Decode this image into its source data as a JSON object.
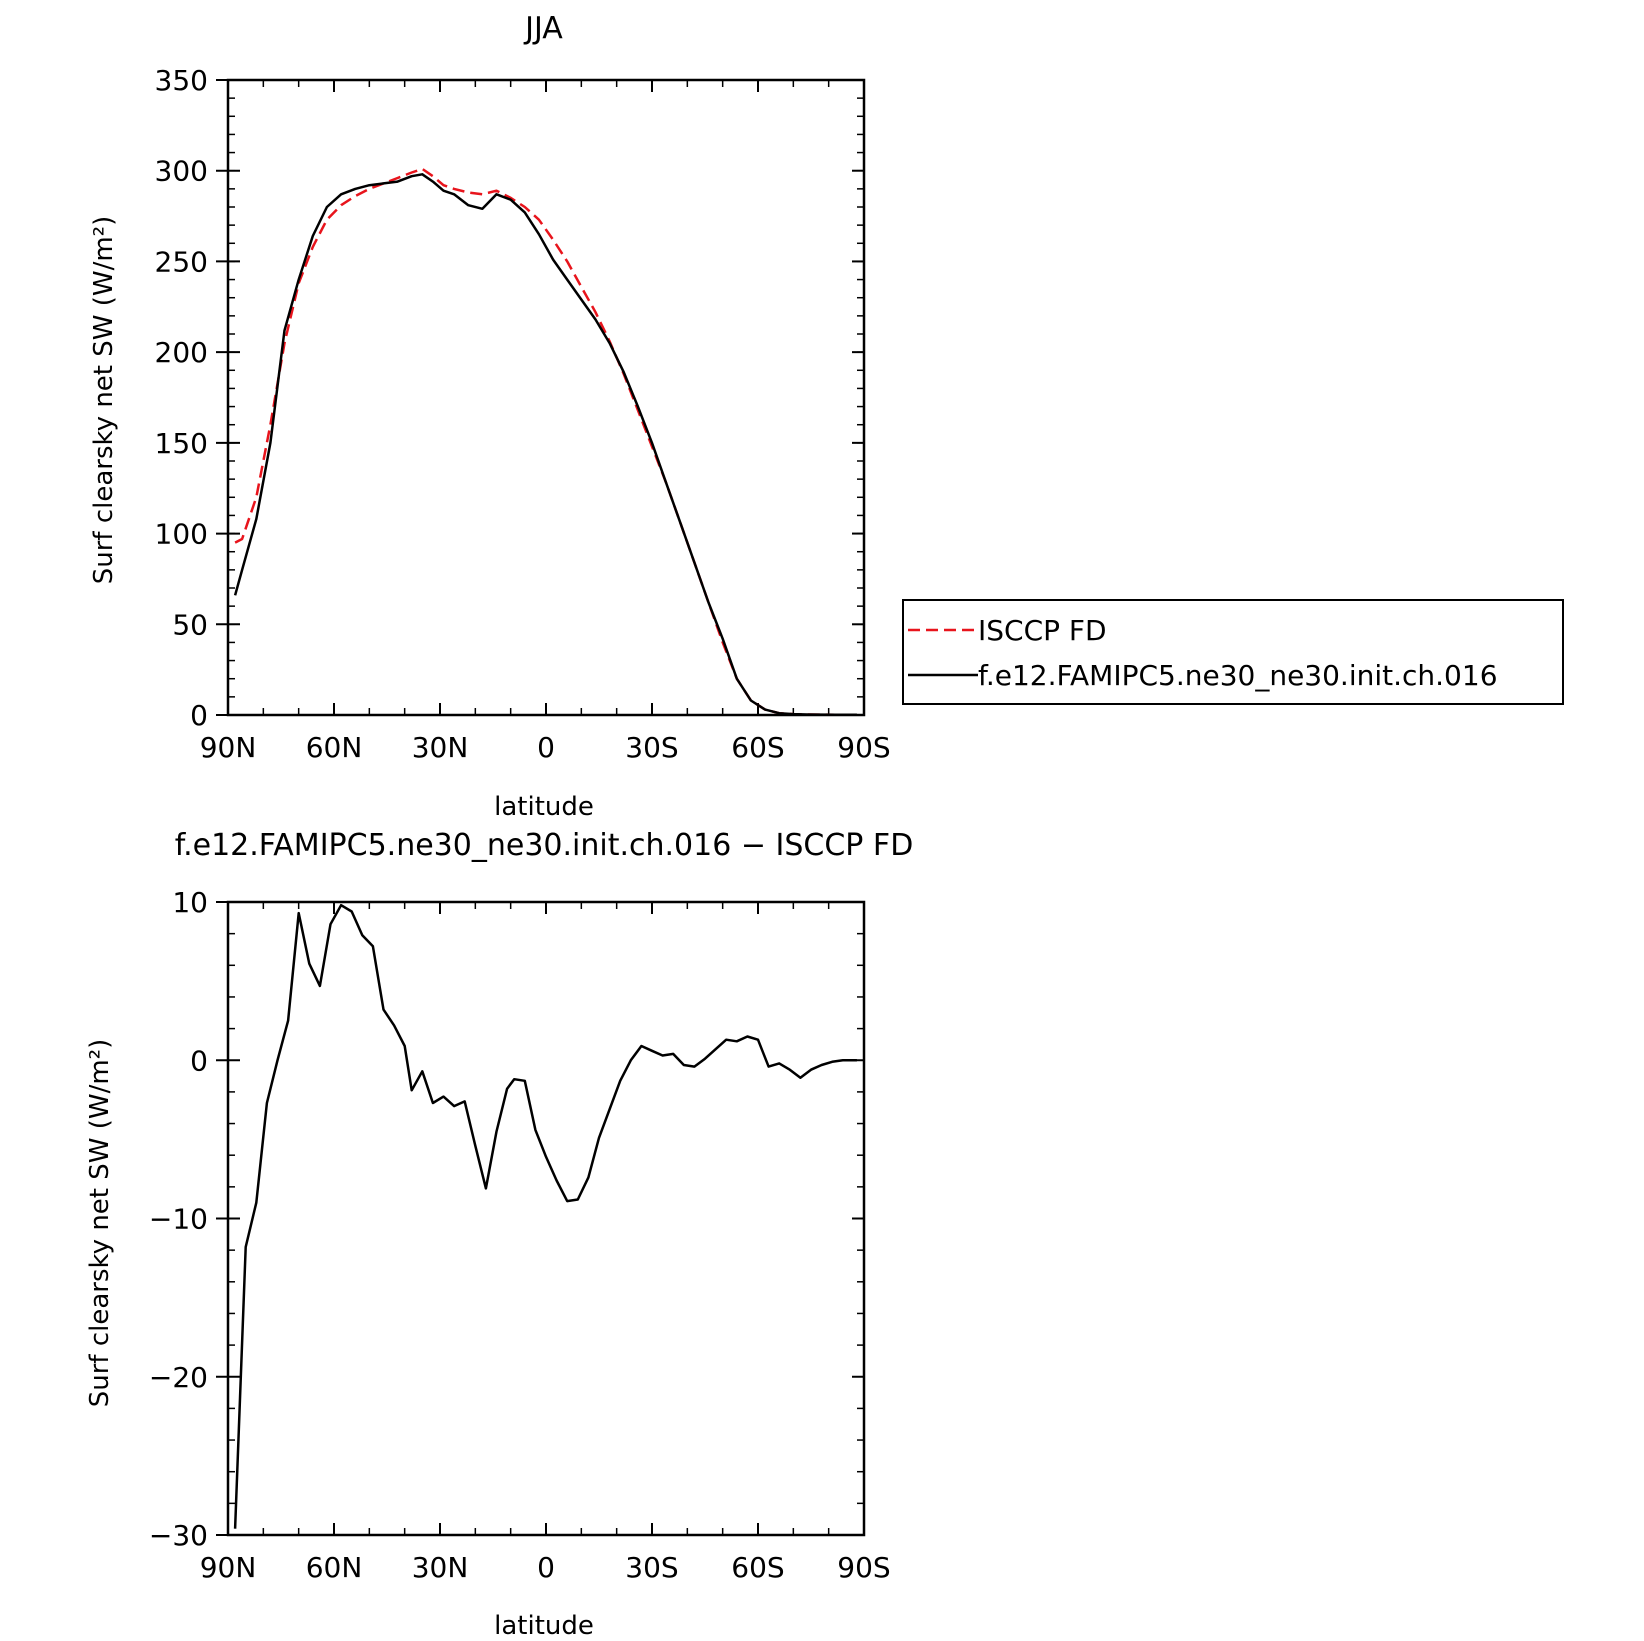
{
  "chart_data": [
    {
      "type": "line",
      "title": "JJA",
      "xlabel": "latitude",
      "ylabel": "Surf clearsky net SW (W/m²)",
      "xlim": [
        -90,
        90
      ],
      "ylim": [
        0,
        350
      ],
      "xticks": [
        {
          "value": -90,
          "label": "90N"
        },
        {
          "value": -60,
          "label": "60N"
        },
        {
          "value": -30,
          "label": "30N"
        },
        {
          "value": 0,
          "label": "0"
        },
        {
          "value": 30,
          "label": "30S"
        },
        {
          "value": 60,
          "label": "60S"
        },
        {
          "value": 90,
          "label": "90S"
        }
      ],
      "yticks": [
        0,
        50,
        100,
        150,
        200,
        250,
        300,
        350
      ],
      "legend_position": "right",
      "series": [
        {
          "name": "ISCCP FD",
          "color": "#e8141c",
          "dash": true,
          "x": [
            -88,
            -86,
            -82,
            -78,
            -74,
            -70,
            -66,
            -62,
            -58,
            -54,
            -50,
            -46,
            -42,
            -38,
            -35,
            -32,
            -29,
            -26,
            -22,
            -18,
            -14,
            -10,
            -6,
            -2,
            2,
            6,
            10,
            14,
            18,
            22,
            26,
            30,
            34,
            38,
            42,
            46,
            50,
            54,
            58,
            62,
            66,
            70,
            74,
            78,
            82,
            86,
            88
          ],
          "y": [
            95,
            97,
            120,
            160,
            205,
            238,
            258,
            273,
            281,
            286,
            290,
            293,
            296,
            299,
            301,
            297,
            292,
            290,
            288,
            287,
            289,
            285,
            280,
            273,
            262,
            250,
            236,
            222,
            206,
            188,
            168,
            148,
            128,
            106,
            84,
            62,
            40,
            20,
            8,
            3,
            1,
            0.5,
            0.3,
            0.2,
            0.1,
            0.1,
            0.1
          ]
        },
        {
          "name": "f.e12.FAMIPC5.ne30_ne30.init.ch.016",
          "color": "#000000",
          "dash": false,
          "x": [
            -88,
            -86,
            -82,
            -78,
            -74,
            -70,
            -66,
            -62,
            -58,
            -54,
            -50,
            -46,
            -42,
            -38,
            -35,
            -32,
            -29,
            -26,
            -22,
            -18,
            -14,
            -10,
            -6,
            -2,
            2,
            6,
            10,
            14,
            18,
            22,
            26,
            30,
            34,
            38,
            42,
            46,
            50,
            54,
            58,
            62,
            66,
            70,
            74,
            78,
            82,
            86,
            88
          ],
          "y": [
            66,
            80,
            108,
            150,
            212,
            240,
            264,
            280,
            287,
            290,
            292,
            293,
            294,
            297,
            298,
            294,
            289,
            287,
            281,
            279,
            287,
            284,
            277,
            265,
            251,
            240,
            229,
            218,
            205,
            189,
            170,
            150,
            128,
            106,
            84,
            62,
            42,
            20,
            8,
            3,
            1,
            0.5,
            0.3,
            0.2,
            0.1,
            0.1,
            0.1
          ]
        }
      ]
    },
    {
      "type": "line",
      "title": "f.e12.FAMIPC5.ne30_ne30.init.ch.016 − ISCCP FD",
      "xlabel": "latitude",
      "ylabel": "Surf clearsky net SW (W/m²)",
      "xlim": [
        -90,
        90
      ],
      "ylim": [
        -30,
        10
      ],
      "xticks": [
        {
          "value": -90,
          "label": "90N"
        },
        {
          "value": -60,
          "label": "60N"
        },
        {
          "value": -30,
          "label": "30N"
        },
        {
          "value": 0,
          "label": "0"
        },
        {
          "value": 30,
          "label": "30S"
        },
        {
          "value": 60,
          "label": "60S"
        },
        {
          "value": 90,
          "label": "90S"
        }
      ],
      "yticks": [
        -30,
        -20,
        -10,
        0,
        10
      ],
      "series": [
        {
          "name": "",
          "color": "#000000",
          "dash": false,
          "x": [
            -88,
            -85,
            -82,
            -79,
            -76,
            -73,
            -70,
            -67,
            -64,
            -61,
            -58,
            -55,
            -52,
            -49,
            -46,
            -43,
            -40,
            -38,
            -35,
            -32,
            -29,
            -26,
            -23,
            -20,
            -17,
            -14,
            -11,
            -9,
            -6,
            -3,
            0,
            3,
            6,
            9,
            12,
            15,
            18,
            21,
            24,
            27,
            30,
            33,
            36,
            39,
            42,
            45,
            48,
            51,
            54,
            57,
            60,
            63,
            66,
            69,
            72,
            75,
            78,
            81,
            84,
            88
          ],
          "y": [
            -29.6,
            -11.8,
            -9.0,
            -2.7,
            0,
            2.5,
            9.3,
            6.1,
            4.7,
            8.6,
            9.8,
            9.4,
            7.9,
            7.2,
            3.2,
            2.2,
            0.9,
            -1.9,
            -0.7,
            -2.7,
            -2.3,
            -2.9,
            -2.6,
            -5.4,
            -8.1,
            -4.5,
            -1.8,
            -1.2,
            -1.3,
            -4.4,
            -6.1,
            -7.6,
            -8.9,
            -8.8,
            -7.4,
            -4.9,
            -3.1,
            -1.3,
            0,
            0.9,
            0.6,
            0.3,
            0.4,
            -0.3,
            -0.4,
            0.1,
            0.7,
            1.3,
            1.2,
            1.5,
            1.3,
            -0.4,
            -0.2,
            -0.6,
            -1.1,
            -0.6,
            -0.3,
            -0.1,
            0,
            0
          ]
        }
      ]
    }
  ]
}
